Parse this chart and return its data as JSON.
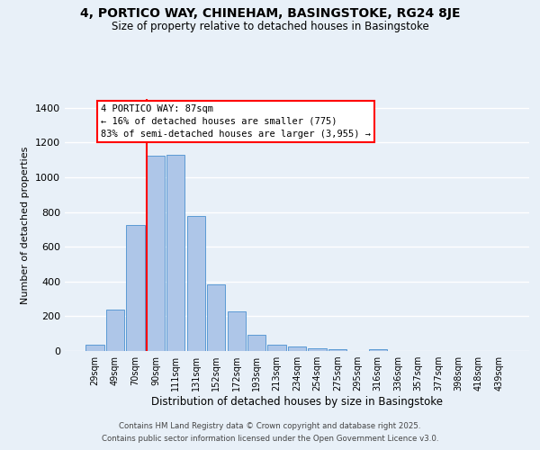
{
  "title": "4, PORTICO WAY, CHINEHAM, BASINGSTOKE, RG24 8JE",
  "subtitle": "Size of property relative to detached houses in Basingstoke",
  "xlabel": "Distribution of detached houses by size in Basingstoke",
  "ylabel": "Number of detached properties",
  "bar_labels": [
    "29sqm",
    "49sqm",
    "70sqm",
    "90sqm",
    "111sqm",
    "131sqm",
    "152sqm",
    "172sqm",
    "193sqm",
    "213sqm",
    "234sqm",
    "254sqm",
    "275sqm",
    "295sqm",
    "316sqm",
    "336sqm",
    "357sqm",
    "377sqm",
    "398sqm",
    "418sqm",
    "439sqm"
  ],
  "bar_values": [
    35,
    240,
    725,
    1125,
    1130,
    775,
    385,
    228,
    95,
    35,
    25,
    18,
    10,
    0,
    8,
    0,
    0,
    0,
    0,
    0,
    0
  ],
  "bar_color": "#aec6e8",
  "bar_edge_color": "#5b9bd5",
  "vline_color": "red",
  "annotation_title": "4 PORTICO WAY: 87sqm",
  "annotation_line1": "← 16% of detached houses are smaller (775)",
  "annotation_line2": "83% of semi-detached houses are larger (3,955) →",
  "annotation_box_color": "white",
  "annotation_box_edge": "red",
  "ylim": [
    0,
    1450
  ],
  "yticks": [
    0,
    200,
    400,
    600,
    800,
    1000,
    1200,
    1400
  ],
  "background_color": "#e8f0f8",
  "grid_color": "white",
  "footer1": "Contains HM Land Registry data © Crown copyright and database right 2025.",
  "footer2": "Contains public sector information licensed under the Open Government Licence v3.0."
}
